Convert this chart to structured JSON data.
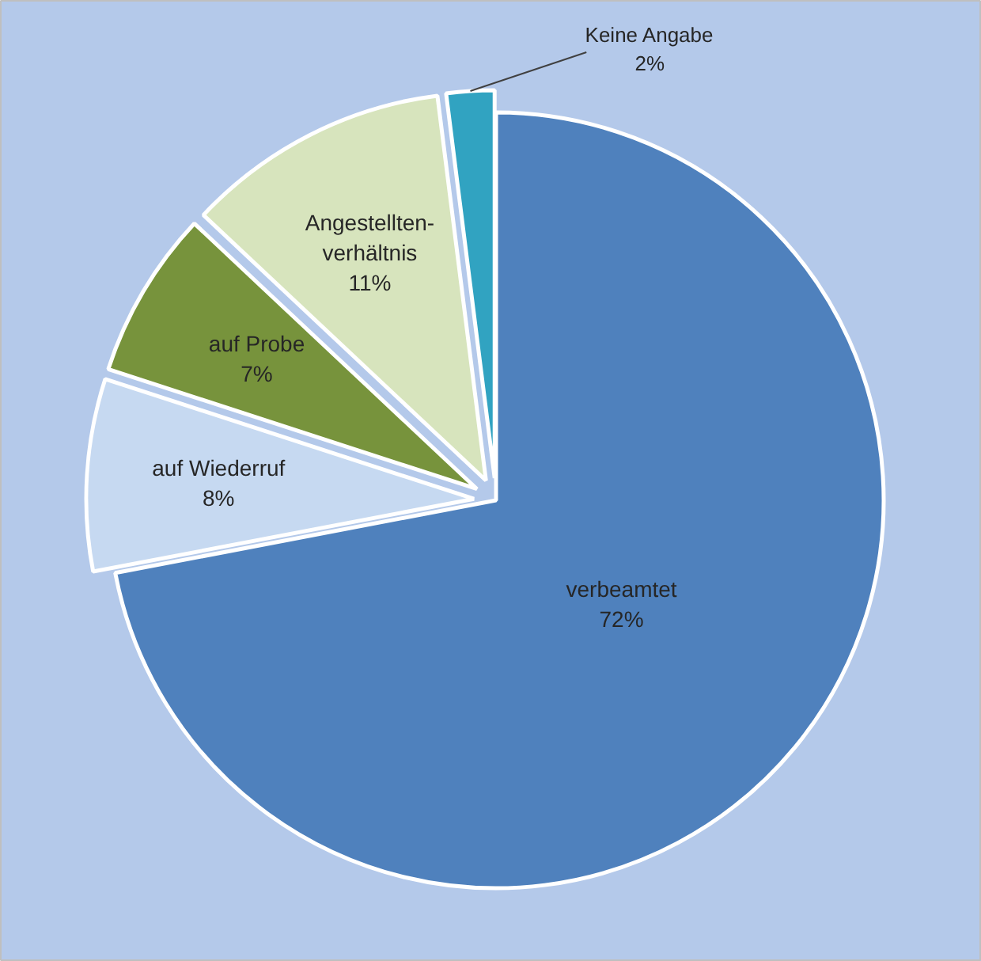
{
  "chart_data": {
    "type": "pie",
    "categories": [
      "verbeamtet",
      "auf Wiederruf",
      "auf Probe",
      "Angestellten-verhältnis",
      "Keine Angabe"
    ],
    "values": [
      72,
      8,
      7,
      11,
      2
    ],
    "value_labels": [
      "72%",
      "8%",
      "7%",
      "11%",
      "2%"
    ],
    "colors": [
      "#4f81bd",
      "#c6d9f1",
      "#77933c",
      "#d7e4bd",
      "#31a3c1"
    ]
  }
}
